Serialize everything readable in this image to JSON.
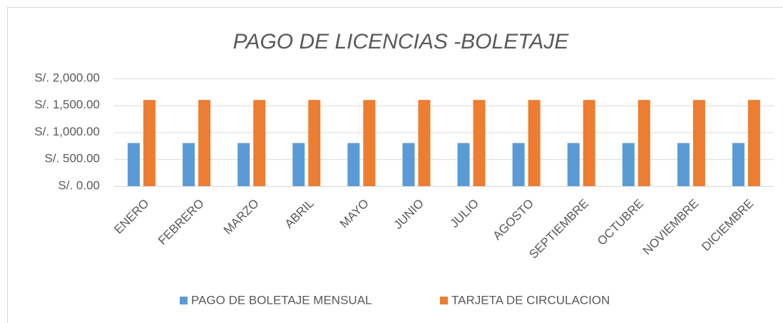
{
  "chart_data": {
    "type": "bar",
    "title": "PAGO DE LICENCIAS -BOLETAJE",
    "categories": [
      "ENERO",
      "FEBRERO",
      "MARZO",
      "ABRIL",
      "MAYO",
      "JUNIO",
      "JULIO",
      "AGOSTO",
      "SEPTIEMBRE",
      "OCTUBRE",
      "NOVIEMBRE",
      "DICIEMBRE"
    ],
    "series": [
      {
        "name": "PAGO DE BOLETAJE MENSUAL",
        "color": "#5b9bd5",
        "values": [
          800,
          800,
          800,
          800,
          800,
          800,
          800,
          800,
          800,
          800,
          800,
          800
        ]
      },
      {
        "name": "TARJETA DE CIRCULACION",
        "color": "#ed7d31",
        "values": [
          1600,
          1600,
          1600,
          1600,
          1600,
          1600,
          1600,
          1600,
          1600,
          1600,
          1600,
          1600
        ]
      }
    ],
    "ylim": [
      0,
      2000
    ],
    "yticks": [
      {
        "value": 0,
        "label": "S/. 0.00"
      },
      {
        "value": 500,
        "label": "S/. 500.00"
      },
      {
        "value": 1000,
        "label": "S/. 1,000.00"
      },
      {
        "value": 1500,
        "label": "S/. 1,500.00"
      },
      {
        "value": 2000,
        "label": "S/. 2,000.00"
      }
    ],
    "grid": true,
    "legend": "bottom"
  }
}
